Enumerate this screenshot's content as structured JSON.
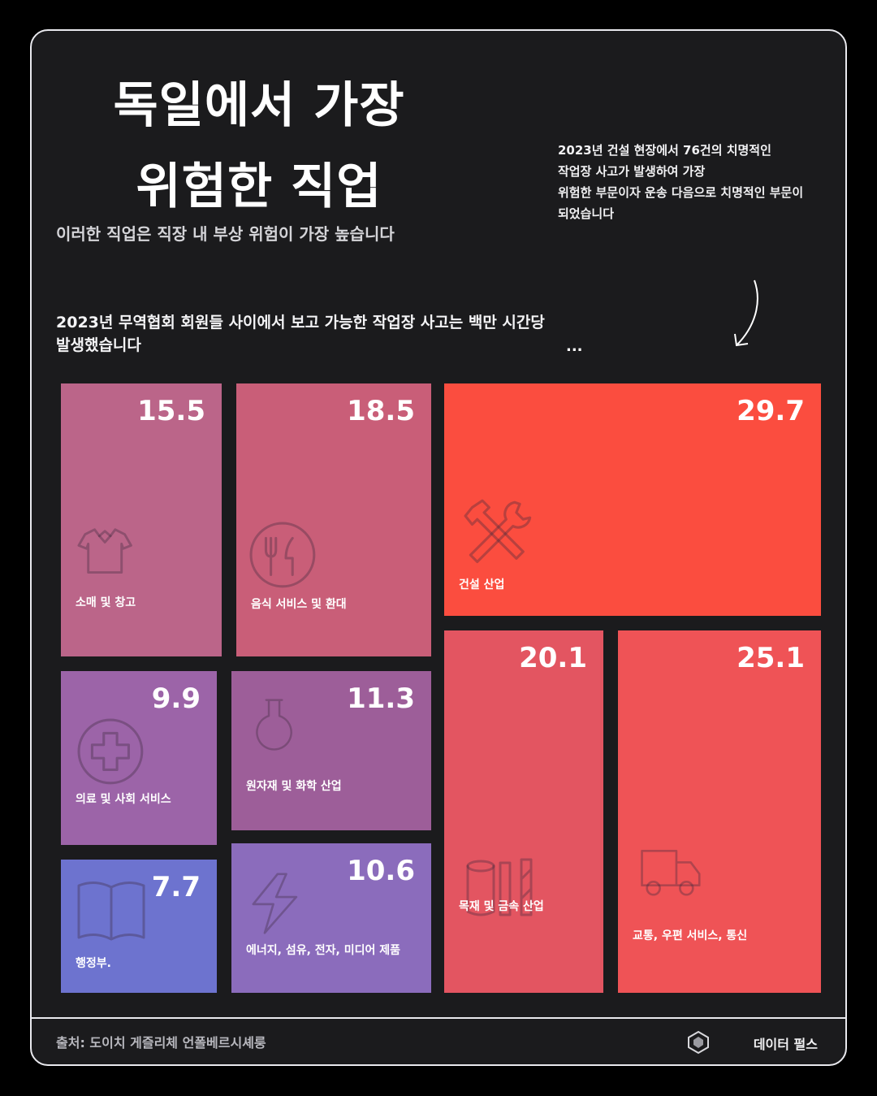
{
  "header": {
    "title_line1": "독일에서 가장",
    "title_line2": "위험한 직업",
    "subtitle": "이러한 직업은 직장 내 부상 위험이 가장 높습니다"
  },
  "side_note": {
    "line1": "2023년 건설 현장에서 76건의 치명적인",
    "line2": "작업장 사고가 발생하여 가장",
    "line3": "위험한 부문이자 운송 다음으로 치명적인 부문이",
    "line4": "되었습니다"
  },
  "lead": {
    "line1": "2023년 무역협회 회원들 사이에서 보고 가능한 작업장 사고는 백만 시간당",
    "line2": "발생했습니다",
    "ellipsis": "..."
  },
  "chart_data": {
    "type": "treemap",
    "items": [
      {
        "label": "소매 및 창고",
        "value": 15.5,
        "icon": "shirt-icon",
        "color": "#bb6589"
      },
      {
        "label": "음식 서비스 및 환대",
        "value": 18.5,
        "icon": "fork-knife-icon",
        "color": "#c95e78"
      },
      {
        "label": "건설 산업",
        "value": 29.7,
        "icon": "tools-icon",
        "color": "#fb4d3f"
      },
      {
        "label": "의료 및 사회 서비스",
        "value": 9.9,
        "icon": "medical-cross-icon",
        "color": "#9c64a8"
      },
      {
        "label": "원자재 및 화학 산업",
        "value": 11.3,
        "icon": "flask-icon",
        "color": "#9d5e99"
      },
      {
        "label": "목재 및 금속 산업",
        "value": 20.1,
        "icon": "wood-metal-icon",
        "color": "#e35561"
      },
      {
        "label": "교통, 우편 서비스, 통신",
        "value": 25.1,
        "icon": "truck-icon",
        "color": "#ef5356"
      },
      {
        "label": "행정부.",
        "value": 7.7,
        "icon": "book-icon",
        "color": "#6d73cf"
      },
      {
        "label": "에너지, 섬유, 전자, 미디어 제품",
        "value": 10.6,
        "icon": "lightning-icon",
        "color": "#8b6cbc"
      }
    ]
  },
  "footer": {
    "source": "출처: 도이치 게즐리체 언폴베르시셰룽",
    "brand": "데이터 펄스"
  }
}
